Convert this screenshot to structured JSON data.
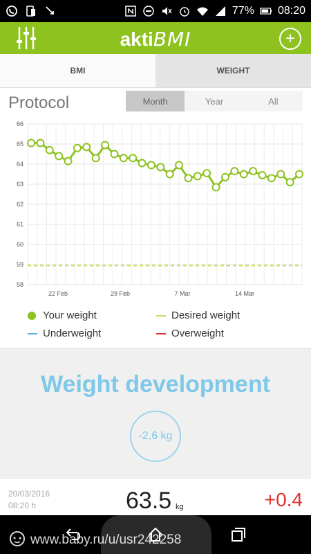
{
  "status_bar": {
    "battery": "77%",
    "time": "08:20"
  },
  "header": {
    "title_part1": "akti",
    "title_part2": "BMI",
    "add_label": "+"
  },
  "tabs": [
    {
      "label": "BMI",
      "active": true
    },
    {
      "label": "WEIGHT",
      "active": false
    }
  ],
  "protocol": {
    "title": "Protocol",
    "periods": [
      {
        "label": "Month",
        "selected": true
      },
      {
        "label": "Year",
        "selected": false
      },
      {
        "label": "All",
        "selected": false
      }
    ]
  },
  "chart_data": {
    "type": "line",
    "x_tick_labels": [
      "22 Feb",
      "29 Feb",
      "7 Mar",
      "14 Mar"
    ],
    "y_tick_labels": [
      "66",
      "65",
      "64",
      "63",
      "62",
      "61",
      "60",
      "59",
      "58"
    ],
    "ylim": [
      58,
      66
    ],
    "grid": true,
    "series": [
      {
        "name": "Your weight",
        "color": "#8dc21f",
        "values": [
          65.05,
          65.05,
          64.7,
          64.4,
          64.15,
          64.8,
          64.85,
          64.3,
          64.95,
          64.5,
          64.3,
          64.3,
          64.05,
          63.95,
          63.85,
          63.5,
          63.95,
          63.3,
          63.4,
          63.55,
          62.85,
          63.35,
          63.65,
          63.5,
          63.65,
          63.45,
          63.3,
          63.5,
          63.1,
          63.5
        ]
      },
      {
        "name": "Desired weight",
        "color": "#c6dc5a",
        "constant": 58.95
      }
    ],
    "legend": [
      {
        "label": "Your weight",
        "color": "#8dc21f",
        "marker": "dot"
      },
      {
        "label": "Desired weight",
        "color": "#c6dc5a",
        "marker": "line"
      },
      {
        "label": "Underweight",
        "color": "#5aaee0",
        "marker": "line"
      },
      {
        "label": "Overweight",
        "color": "#e03030",
        "marker": "line"
      }
    ]
  },
  "weight_development": {
    "title": "Weight development",
    "change": "-2,6 kg"
  },
  "entry": {
    "date": "20/03/2016",
    "time": "08:20 h",
    "weight": "63.5",
    "unit": "kg",
    "delta": "+0.4"
  },
  "watermark": "www.baby.ru/u/usr242258"
}
